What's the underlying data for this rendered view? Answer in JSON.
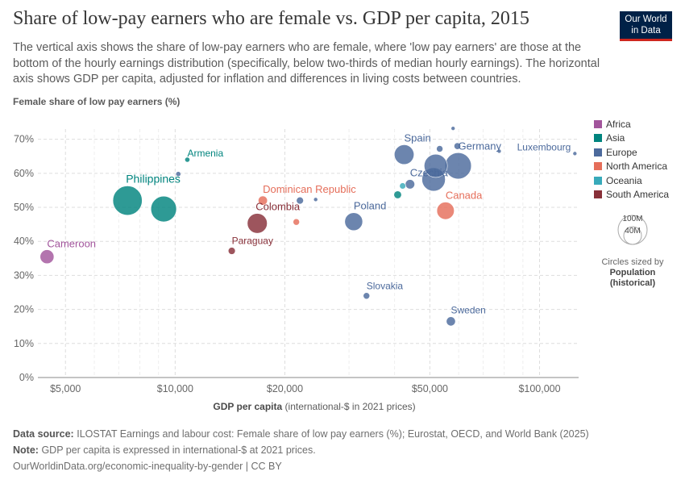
{
  "title": "Share of low-pay earners who are female vs. GDP per capita, 2015",
  "subtitle": "The vertical axis shows the share of low-pay earners who are female, where 'low pay earners' are those at the bottom of the hourly earnings distribution (specifically, below two-thirds of median hourly earnings). The horizontal axis shows GDP per capita, adjusted for inflation and differences in living costs between countries.",
  "logo": {
    "line1": "Our World",
    "line2": "in Data"
  },
  "colors": {
    "Africa": "#a2559c",
    "Asia": "#00847e",
    "Europe": "#4c6a9c",
    "North America": "#e56e5a",
    "Oceania": "#38aaba",
    "South America": "#883039"
  },
  "legend": {
    "regions": [
      "Africa",
      "Asia",
      "Europe",
      "North America",
      "Oceania",
      "South America"
    ],
    "size_values": [
      "100M",
      "40M"
    ],
    "size_caption1": "Circles sized by",
    "size_caption2": "Population",
    "size_caption3": "(historical)"
  },
  "chart_data": {
    "type": "scatter",
    "title": "Share of low-pay earners who are female vs. GDP per capita, 2015",
    "ylabel": "Female share of low pay earners (%)",
    "xlabel_bold": "GDP per capita",
    "xlabel_rest": "(international-$ in 2021 prices)",
    "x_scale": "log",
    "xlim": [
      4200,
      128000
    ],
    "ylim": [
      0,
      73
    ],
    "x_ticks": [
      5000,
      10000,
      20000,
      50000,
      100000
    ],
    "x_tick_labels": [
      "$5,000",
      "$10,000",
      "$20,000",
      "$50,000",
      "$100,000"
    ],
    "y_ticks": [
      0,
      10,
      20,
      30,
      40,
      50,
      60,
      70
    ],
    "y_tick_labels": [
      "0%",
      "10%",
      "20%",
      "30%",
      "40%",
      "50%",
      "60%",
      "70%"
    ],
    "points": [
      {
        "label": "Cameroon",
        "x": 4450,
        "y": 35.5,
        "pop": 23,
        "region": "Africa",
        "show": true
      },
      {
        "label": "Armenia",
        "x": 10800,
        "y": 64,
        "pop": 3,
        "region": "Asia",
        "show": true
      },
      {
        "label": "",
        "x": 10200,
        "y": 59.8,
        "pop": 3,
        "region": "Europe",
        "show": false
      },
      {
        "label": "Philippines",
        "x": 7400,
        "y": 52,
        "pop": 102,
        "region": "Asia",
        "show": true
      },
      {
        "label": "",
        "x": 9300,
        "y": 49.5,
        "pop": 78,
        "region": "Asia",
        "show": false
      },
      {
        "label": "Dominican Republic",
        "x": 17400,
        "y": 52,
        "pop": 10,
        "region": "North America",
        "show": true
      },
      {
        "label": "",
        "x": 21500,
        "y": 45.7,
        "pop": 5,
        "region": "North America",
        "show": false
      },
      {
        "label": "",
        "x": 22000,
        "y": 52,
        "pop": 6,
        "region": "Europe",
        "show": false
      },
      {
        "label": "",
        "x": 24300,
        "y": 52.3,
        "pop": 2,
        "region": "Europe",
        "show": false
      },
      {
        "label": "Colombia",
        "x": 16800,
        "y": 45.3,
        "pop": 47,
        "region": "South America",
        "show": true
      },
      {
        "label": "Paraguay",
        "x": 14300,
        "y": 37.2,
        "pop": 6,
        "region": "South America",
        "show": true
      },
      {
        "label": "Poland",
        "x": 30900,
        "y": 45.8,
        "pop": 38,
        "region": "Europe",
        "show": true
      },
      {
        "label": "Slovakia",
        "x": 33500,
        "y": 24,
        "pop": 5,
        "region": "Europe",
        "show": true
      },
      {
        "label": "",
        "x": 40800,
        "y": 53.7,
        "pop": 7,
        "region": "Asia",
        "show": false
      },
      {
        "label": "",
        "x": 42100,
        "y": 56.3,
        "pop": 4.6,
        "region": "Oceania",
        "show": false
      },
      {
        "label": "Czechia",
        "x": 44100,
        "y": 56.8,
        "pop": 10.5,
        "region": "Europe",
        "show": true
      },
      {
        "label": "Spain",
        "x": 42500,
        "y": 65.5,
        "pop": 46,
        "region": "Europe",
        "show": true
      },
      {
        "label": "",
        "x": 51200,
        "y": 58.2,
        "pop": 65,
        "region": "Europe",
        "show": false
      },
      {
        "label": "",
        "x": 51900,
        "y": 62.2,
        "pop": 64,
        "region": "Europe",
        "show": false
      },
      {
        "label": "Germany",
        "x": 59800,
        "y": 62.2,
        "pop": 82,
        "region": "Europe",
        "show": true
      },
      {
        "label": "",
        "x": 53200,
        "y": 67.2,
        "pop": 5,
        "region": "Europe",
        "show": false
      },
      {
        "label": "",
        "x": 59500,
        "y": 68,
        "pop": 5.3,
        "region": "Europe",
        "show": false
      },
      {
        "label": "",
        "x": 57900,
        "y": 73.2,
        "pop": 0.4,
        "region": "Europe",
        "show": false
      },
      {
        "label": "Canada",
        "x": 55200,
        "y": 49,
        "pop": 36,
        "region": "North America",
        "show": true
      },
      {
        "label": "Sweden",
        "x": 57100,
        "y": 16.5,
        "pop": 9.8,
        "region": "Europe",
        "show": true
      },
      {
        "label": "",
        "x": 77500,
        "y": 66.5,
        "pop": 0.33,
        "region": "Europe",
        "show": false
      },
      {
        "label": "Luxembourg",
        "x": 125000,
        "y": 65.8,
        "pop": 0.57,
        "region": "Europe",
        "show": true
      }
    ]
  },
  "footer": {
    "source_label": "Data source:",
    "source_text": "ILOSTAT Earnings and labour cost: Female share of low pay earners (%); Eurostat, OECD, and World Bank (2025)",
    "note_label": "Note:",
    "note_text": "GDP per capita is expressed in international-$ at 2021 prices.",
    "url": "OurWorldinData.org/economic-inequality-by-gender | CC BY"
  }
}
